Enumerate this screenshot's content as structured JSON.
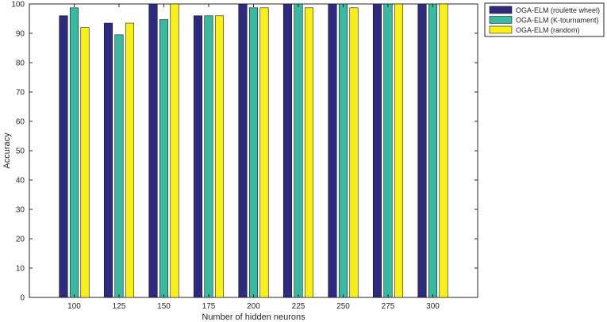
{
  "chart_data": {
    "type": "bar",
    "categories": [
      "100",
      "125",
      "150",
      "175",
      "200",
      "225",
      "250",
      "275",
      "300"
    ],
    "series": [
      {
        "name": "OGA-ELM (roulette wheel)",
        "color": "#2e2a7e",
        "values": [
          96,
          93.5,
          100,
          96,
          100,
          100,
          100,
          100,
          100
        ]
      },
      {
        "name": "OGA-ELM (K-tournament)",
        "color": "#3bb8a0",
        "values": [
          98.7,
          89.5,
          94.7,
          96,
          98.7,
          100,
          100,
          100,
          100
        ]
      },
      {
        "name": "OGA-ELM (random)",
        "color": "#f7f01c",
        "values": [
          92,
          93.5,
          100,
          96,
          98.7,
          98.7,
          98.7,
          100,
          100
        ]
      }
    ],
    "xlabel": "Number of hidden neurons",
    "ylabel": "Accuracy",
    "ylim": [
      0,
      100
    ],
    "yticks": [
      0,
      10,
      20,
      30,
      40,
      50,
      60,
      70,
      80,
      90,
      100
    ],
    "grid": false,
    "legend_position": "top-right"
  }
}
